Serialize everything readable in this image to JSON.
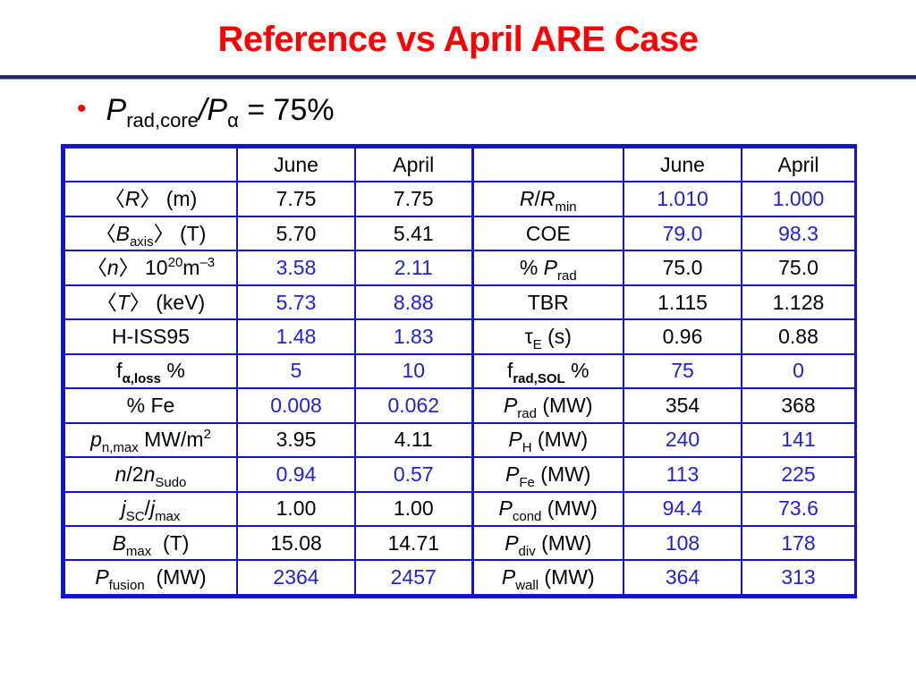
{
  "slide": {
    "title": "Reference vs April ARE Case",
    "bullet": {
      "lhs_symbol": "P",
      "lhs_sub": "rad,core",
      "slash": "/",
      "rhs_symbol": "P",
      "rhs_sub": "α",
      "rest": " = 75%"
    }
  },
  "colors": {
    "title": "#ff0000",
    "highlight_value": "#1f1fd6",
    "table_border": "#1414c8",
    "rule": "#1f2a6b"
  },
  "table": {
    "headers": [
      "June",
      "April",
      "June",
      "April"
    ],
    "left_values": [
      [
        "7.75",
        "7.75"
      ],
      [
        "5.70",
        "5.41"
      ],
      [
        "3.58",
        "2.11"
      ],
      [
        "5.73",
        "8.88"
      ],
      [
        "1.48",
        "1.83"
      ],
      [
        "5",
        "10"
      ],
      [
        "0.008",
        "0.062"
      ],
      [
        "3.95",
        "4.11"
      ],
      [
        "0.94",
        "0.57"
      ],
      [
        "1.00",
        "1.00"
      ],
      [
        "15.08",
        "14.71"
      ],
      [
        "2364",
        "2457"
      ]
    ],
    "right_values": [
      [
        "1.010",
        "1.000"
      ],
      [
        "79.0",
        "98.3"
      ],
      [
        "75.0",
        "75.0"
      ],
      [
        "1.115",
        "1.128"
      ],
      [
        "0.96",
        "0.88"
      ],
      [
        "75",
        "0"
      ],
      [
        "354",
        "368"
      ],
      [
        "240",
        "141"
      ],
      [
        "113",
        "225"
      ],
      [
        "94.4",
        "73.6"
      ],
      [
        "108",
        "178"
      ],
      [
        "364",
        "313"
      ]
    ],
    "labels": {
      "r_avg": {
        "open": "〈",
        "sym": "R",
        "close": "〉",
        "unit": " (m)"
      },
      "b_axis": {
        "open": "〈",
        "sym": "B",
        "sub": "axis",
        "close": "〉",
        "unit": " (T)"
      },
      "n_avg": {
        "open": "〈",
        "sym": "n",
        "close": "〉",
        "unit": " 10",
        "sup1": "20",
        "m": "m",
        "sup2": "–3"
      },
      "t_avg": {
        "open": "〈",
        "sym": "T",
        "close": "〉",
        "unit": " (keV)"
      },
      "h_iss": "H-ISS95",
      "f_aloss": {
        "f": "f",
        "sub": "α,loss",
        "unit": " %"
      },
      "pct_fe": "% Fe",
      "p_nmax": {
        "sym": "p",
        "sub": "n,max",
        "unit": " MW/m",
        "sup": "2"
      },
      "n_sudo": {
        "sym1": "n",
        "mid": "/2",
        "sym2": "n",
        "sub": "Sudo"
      },
      "j_ratio": {
        "sym1": "j",
        "sub1": "SC",
        "slash": "/",
        "sym2": "j",
        "sub2": "max"
      },
      "b_max": {
        "sym": "B",
        "sub": "max",
        "unit": "  (T)"
      },
      "p_fusion": {
        "sym": "P",
        "sub": "fusion",
        "unit": "  (MW)"
      },
      "r_rmin": {
        "sym1": "R",
        "slash": "/",
        "sym2": "R",
        "sub": "min"
      },
      "coe": "COE",
      "pct_prad": {
        "pre": "% ",
        "sym": "P",
        "sub": "rad"
      },
      "tbr": "TBR",
      "tau_e": {
        "sym": "τ",
        "sub": "E",
        "unit": " (s)"
      },
      "f_radsol": {
        "f": "f",
        "sub": "rad,SOL",
        "unit": " %"
      },
      "p_rad": {
        "sym": "P",
        "sub": "rad",
        "unit": " (MW)"
      },
      "p_h": {
        "sym": "P",
        "sub": "H",
        "unit": " (MW)"
      },
      "p_fe": {
        "sym": "P",
        "sub": "Fe",
        "unit": " (MW)"
      },
      "p_cond": {
        "sym": "P",
        "sub": "cond",
        "unit": " (MW)"
      },
      "p_div": {
        "sym": "P",
        "sub": "div",
        "unit": " (MW)"
      },
      "p_wall": {
        "sym": "P",
        "sub": "wall",
        "unit": " (MW)"
      }
    }
  }
}
